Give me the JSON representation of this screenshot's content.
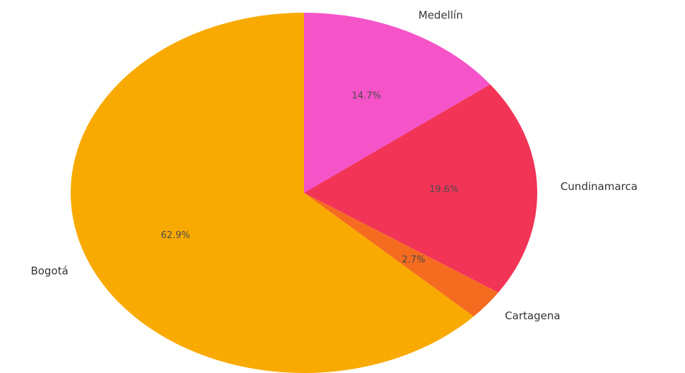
{
  "chart_data": {
    "type": "pie",
    "start_angle_deg": 90,
    "direction": "clockwise",
    "slices": [
      {
        "label": "Medellín",
        "value": 14.7,
        "pct_label": "14.7%",
        "color": "#F553C8"
      },
      {
        "label": "Cundinamarca",
        "value": 19.6,
        "pct_label": "19.6%",
        "color": "#F23457"
      },
      {
        "label": "Cartagena",
        "value": 2.7,
        "pct_label": "2.7%",
        "color": "#F56B1F"
      },
      {
        "label": "Bogotá",
        "value": 62.9,
        "pct_label": "62.9%",
        "color": "#F9AA01"
      }
    ]
  }
}
